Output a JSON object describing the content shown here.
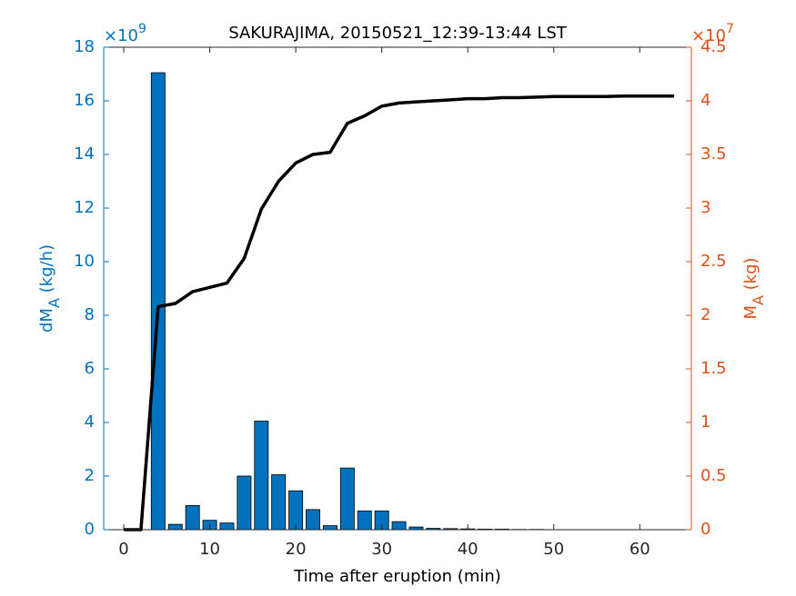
{
  "chart_data": {
    "type": "combo",
    "title": "SAKURAJIMA, 20150521_12:39-13:44 LST",
    "xlabel": "Time after eruption (min)",
    "ylabel": {
      "main": "dM",
      "sub": "A",
      "unit": "(kg/h)"
    },
    "y2label": {
      "main": "M",
      "sub": "A",
      "unit": "(kg)"
    },
    "yexponent": {
      "base": "×10",
      "power": "9"
    },
    "y2exponent": {
      "base": "×10",
      "power": "7"
    },
    "x": [
      0,
      2,
      4,
      6,
      8,
      10,
      12,
      14,
      16,
      18,
      20,
      22,
      24,
      26,
      28,
      30,
      32,
      34,
      36,
      38,
      40,
      42,
      44,
      46,
      48,
      50,
      52,
      54,
      56,
      58,
      60,
      62,
      64
    ],
    "series": [
      {
        "type": "bar",
        "axis": "y",
        "color": "#0072bd",
        "values": [
          0,
          0,
          17.05,
          0.2,
          0.9,
          0.35,
          0.25,
          2.0,
          4.05,
          2.05,
          1.45,
          0.75,
          0.15,
          2.3,
          0.7,
          0.7,
          0.3,
          0.1,
          0.05,
          0.04,
          0.03,
          0.02,
          0.02,
          0.01,
          0.01,
          0,
          0,
          0,
          0,
          0,
          0,
          0,
          0
        ]
      },
      {
        "type": "line",
        "axis": "y2",
        "color": "#000000",
        "values": [
          0,
          0,
          2.08,
          2.11,
          2.22,
          2.26,
          2.3,
          2.53,
          2.99,
          3.25,
          3.42,
          3.5,
          3.52,
          3.79,
          3.86,
          3.95,
          3.98,
          3.99,
          4.0,
          4.01,
          4.02,
          4.02,
          4.03,
          4.03,
          4.035,
          4.04,
          4.04,
          4.04,
          4.04,
          4.045,
          4.045,
          4.045,
          4.045
        ]
      }
    ],
    "xlim": [
      -2.33,
      66
    ],
    "xticks": [
      0,
      10,
      20,
      30,
      40,
      50,
      60
    ],
    "ylim": [
      0,
      18
    ],
    "yticks": [
      0,
      2,
      4,
      6,
      8,
      10,
      12,
      14,
      16,
      18
    ],
    "ycolor": "#0072bd",
    "y2lim": [
      0,
      4.5
    ],
    "y2ticks": [
      0,
      0.5,
      1,
      1.5,
      2,
      2.5,
      3,
      3.5,
      4,
      4.5
    ],
    "y2color": "#d95319"
  }
}
